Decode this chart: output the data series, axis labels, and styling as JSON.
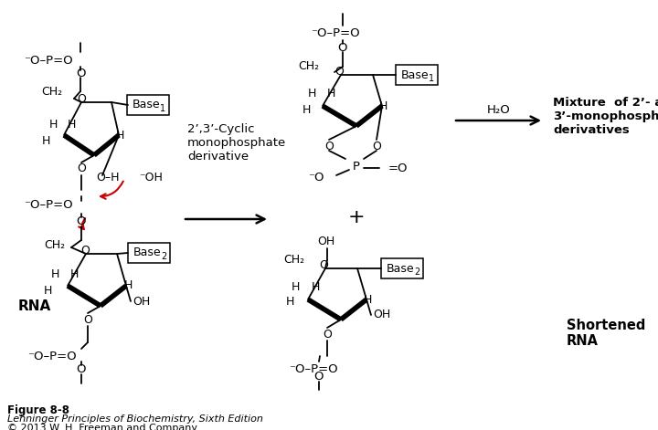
{
  "background_color": "#ffffff",
  "figure_width": 7.2,
  "figure_height": 4.71,
  "dpi": 100,
  "caption_line1": "Figure 8-8",
  "caption_line2": "Lehninger Principles of Biochemistry, Sixth Edition",
  "caption_line3": "© 2013 W. H. Freeman and Company",
  "color_black": "#000000",
  "color_red": "#cc0000",
  "color_white": "#ffffff"
}
